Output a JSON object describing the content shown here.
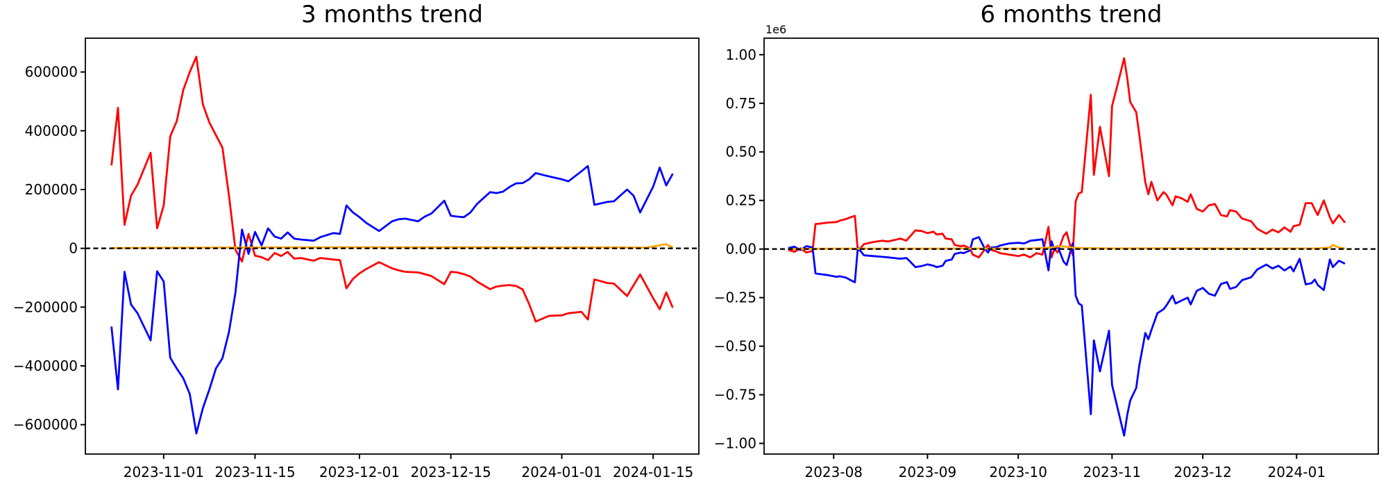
{
  "figure": {
    "background": "#ffffff",
    "axis_color": "#000000",
    "text_color": "#000000"
  },
  "chart_data": [
    {
      "type": "line",
      "title": "3 months trend",
      "legend": "none",
      "grid": false,
      "xlim": [
        "2023-10-20",
        "2024-01-22"
      ],
      "ylim": [
        -700000,
        715000
      ],
      "x_tick_values": [
        "2023-11-01",
        "2023-11-15",
        "2023-12-01",
        "2023-12-15",
        "2024-01-01",
        "2024-01-15"
      ],
      "x_tick_labels": [
        "2023-11-01",
        "2023-11-15",
        "2023-12-01",
        "2023-12-15",
        "2024-01-01",
        "2024-01-15"
      ],
      "y_tick_values": [
        600000,
        400000,
        200000,
        0,
        -200000,
        -400000,
        -600000
      ],
      "y_tick_labels": [
        "600000",
        "400000",
        "200000",
        "0",
        "−200000",
        "−400000",
        "−600000"
      ],
      "zero_line": {
        "value": 0,
        "color": "#000000",
        "style": "dashed"
      },
      "x": [
        "2023-10-24",
        "2023-10-25",
        "2023-10-26",
        "2023-10-27",
        "2023-10-28",
        "2023-10-30",
        "2023-10-31",
        "2023-11-01",
        "2023-11-02",
        "2023-11-03",
        "2023-11-04",
        "2023-11-05",
        "2023-11-06",
        "2023-11-07",
        "2023-11-08",
        "2023-11-09",
        "2023-11-10",
        "2023-11-11",
        "2023-11-12",
        "2023-11-13",
        "2023-11-14",
        "2023-11-15",
        "2023-11-16",
        "2023-11-17",
        "2023-11-18",
        "2023-11-19",
        "2023-11-20",
        "2023-11-21",
        "2023-11-22",
        "2023-11-24",
        "2023-11-25",
        "2023-11-27",
        "2023-11-28",
        "2023-11-29",
        "2023-11-30",
        "2023-12-01",
        "2023-12-02",
        "2023-12-04",
        "2023-12-06",
        "2023-12-07",
        "2023-12-08",
        "2023-12-10",
        "2023-12-11",
        "2023-12-12",
        "2023-12-14",
        "2023-12-15",
        "2023-12-16",
        "2023-12-17",
        "2023-12-18",
        "2023-12-19",
        "2023-12-21",
        "2023-12-22",
        "2023-12-23",
        "2023-12-24",
        "2023-12-25",
        "2023-12-26",
        "2023-12-27",
        "2023-12-28",
        "2023-12-30",
        "2024-01-01",
        "2024-01-02",
        "2024-01-04",
        "2024-01-05",
        "2024-01-06",
        "2024-01-08",
        "2024-01-09",
        "2024-01-11",
        "2024-01-12",
        "2024-01-13",
        "2024-01-15",
        "2024-01-16",
        "2024-01-17",
        "2024-01-18"
      ],
      "series": [
        {
          "name": "red-line",
          "color": "#ff0000",
          "y": [
            282000,
            478000,
            80000,
            179000,
            217000,
            325000,
            68000,
            146000,
            381000,
            433000,
            539000,
            600000,
            652000,
            490000,
            428000,
            385000,
            343000,
            180000,
            -5000,
            -45000,
            49000,
            -25000,
            -30000,
            -40000,
            -16000,
            -26000,
            -12000,
            -35000,
            -33000,
            -42000,
            -33000,
            -38000,
            -40000,
            -136000,
            -104000,
            -85000,
            -71000,
            -47000,
            -68000,
            -75000,
            -80000,
            -82000,
            -88000,
            -94000,
            -122000,
            -80000,
            -82000,
            -88000,
            -96000,
            -113000,
            -139000,
            -130000,
            -127000,
            -125000,
            -128000,
            -140000,
            -190000,
            -249000,
            -230000,
            -228000,
            -221000,
            -216000,
            -242000,
            -106000,
            -118000,
            -120000,
            -162000,
            -125000,
            -89000,
            -170000,
            -207000,
            -150000,
            -202000
          ]
        },
        {
          "name": "blue-line",
          "color": "#0000ff",
          "y": [
            -266000,
            -480000,
            -80000,
            -191000,
            -221000,
            -313000,
            -78000,
            -113000,
            -372000,
            -409000,
            -442000,
            -496000,
            -630000,
            -544000,
            -480000,
            -409000,
            -374000,
            -285000,
            -150000,
            64000,
            -19000,
            56000,
            10000,
            68000,
            40000,
            33000,
            54000,
            33000,
            30000,
            26000,
            38000,
            52000,
            49000,
            146000,
            122000,
            106000,
            87000,
            59000,
            92000,
            99000,
            101000,
            92000,
            108000,
            118000,
            162000,
            111000,
            108000,
            106000,
            122000,
            151000,
            191000,
            188000,
            193000,
            209000,
            221000,
            222000,
            235000,
            256000,
            245000,
            235000,
            228000,
            262000,
            280000,
            148000,
            158000,
            160000,
            200000,
            179000,
            122000,
            210000,
            275000,
            214000,
            254000
          ]
        },
        {
          "name": "orange-line",
          "color": "#ffa500",
          "x": [
            "2023-10-24",
            "2023-11-01",
            "2023-11-15",
            "2023-12-01",
            "2023-12-15",
            "2024-01-05",
            "2024-01-10",
            "2024-01-14",
            "2024-01-16",
            "2024-01-17",
            "2024-01-18"
          ],
          "y": [
            1000,
            2000,
            3000,
            3500,
            3500,
            3000,
            3000,
            2500,
            10000,
            14000,
            3000
          ]
        }
      ]
    },
    {
      "type": "line",
      "title": "6 months trend",
      "legend": "none",
      "grid": false,
      "offset_label": "1e6",
      "xlim": [
        "2023-07-09",
        "2024-01-28"
      ],
      "ylim": [
        -1055000,
        1085000
      ],
      "x_tick_values": [
        "2023-08-01",
        "2023-09-01",
        "2023-10-01",
        "2023-11-01",
        "2023-12-01",
        "2024-01-01"
      ],
      "x_tick_labels": [
        "2023-08",
        "2023-09",
        "2023-10",
        "2023-11",
        "2023-12",
        "2024-01"
      ],
      "y_tick_values": [
        1000000,
        750000,
        500000,
        250000,
        0,
        -250000,
        -500000,
        -750000,
        -1000000
      ],
      "y_tick_labels": [
        "1.00",
        "0.75",
        "0.50",
        "0.25",
        "0.00",
        "−0.25",
        "−0.50",
        "−0.75",
        "−1.00"
      ],
      "zero_line": {
        "value": 0,
        "color": "#000000",
        "style": "dashed"
      },
      "x": [
        "2023-07-17",
        "2023-07-19",
        "2023-07-21",
        "2023-07-23",
        "2023-07-25",
        "2023-07-26",
        "2023-07-28",
        "2023-07-30",
        "2023-08-02",
        "2023-08-03",
        "2023-08-05",
        "2023-08-08",
        "2023-08-09",
        "2023-08-11",
        "2023-08-14",
        "2023-08-17",
        "2023-08-19",
        "2023-08-21",
        "2023-08-23",
        "2023-08-25",
        "2023-08-26",
        "2023-08-28",
        "2023-08-30",
        "2023-09-01",
        "2023-09-03",
        "2023-09-04",
        "2023-09-06",
        "2023-09-07",
        "2023-09-09",
        "2023-09-10",
        "2023-09-12",
        "2023-09-13",
        "2023-09-15",
        "2023-09-16",
        "2023-09-18",
        "2023-09-20",
        "2023-09-21",
        "2023-09-22",
        "2023-09-24",
        "2023-09-25",
        "2023-09-28",
        "2023-10-01",
        "2023-10-03",
        "2023-10-05",
        "2023-10-07",
        "2023-10-09",
        "2023-10-11",
        "2023-10-12",
        "2023-10-13",
        "2023-10-14",
        "2023-10-16",
        "2023-10-17",
        "2023-10-19",
        "2023-10-20",
        "2023-10-21",
        "2023-10-22",
        "2023-10-25",
        "2023-10-26",
        "2023-10-28",
        "2023-10-31",
        "2023-11-01",
        "2023-11-03",
        "2023-11-05",
        "2023-11-06",
        "2023-11-07",
        "2023-11-09",
        "2023-11-10",
        "2023-11-12",
        "2023-11-13",
        "2023-11-14",
        "2023-11-16",
        "2023-11-18",
        "2023-11-19",
        "2023-11-21",
        "2023-11-22",
        "2023-11-24",
        "2023-11-26",
        "2023-11-27",
        "2023-11-29",
        "2023-12-01",
        "2023-12-03",
        "2023-12-05",
        "2023-12-07",
        "2023-12-09",
        "2023-12-10",
        "2023-12-12",
        "2023-12-14",
        "2023-12-17",
        "2023-12-19",
        "2023-12-22",
        "2023-12-24",
        "2023-12-26",
        "2023-12-28",
        "2023-12-30",
        "2023-12-31",
        "2024-01-02",
        "2024-01-04",
        "2024-01-06",
        "2024-01-07",
        "2024-01-08",
        "2024-01-10",
        "2024-01-12",
        "2024-01-13",
        "2024-01-15",
        "2024-01-17"
      ],
      "series": [
        {
          "name": "red-line",
          "color": "#ff0000",
          "y": [
            -5000,
            -14000,
            4000,
            -18000,
            -10000,
            129000,
            132000,
            136000,
            139000,
            146000,
            154000,
            171000,
            -10000,
            25000,
            36000,
            43000,
            39000,
            46000,
            54000,
            43000,
            61000,
            96000,
            93000,
            82000,
            89000,
            75000,
            79000,
            54000,
            50000,
            21000,
            14000,
            18000,
            4000,
            -29000,
            -43000,
            0,
            21000,
            -4000,
            -14000,
            -21000,
            -29000,
            -36000,
            -29000,
            -43000,
            -21000,
            -29000,
            114000,
            -43000,
            0,
            -18000,
            68000,
            86000,
            -32000,
            246000,
            286000,
            293000,
            793000,
            382000,
            629000,
            375000,
            736000,
            857000,
            982000,
            882000,
            757000,
            704000,
            589000,
            343000,
            282000,
            346000,
            250000,
            293000,
            279000,
            225000,
            271000,
            261000,
            243000,
            282000,
            207000,
            193000,
            225000,
            232000,
            175000,
            168000,
            200000,
            193000,
            157000,
            143000,
            104000,
            79000,
            100000,
            86000,
            111000,
            89000,
            118000,
            125000,
            236000,
            236000,
            204000,
            175000,
            250000,
            164000,
            132000,
            175000,
            136000
          ]
        },
        {
          "name": "blue-line",
          "color": "#0000ff",
          "y": [
            5000,
            12000,
            -5000,
            15000,
            8000,
            -125000,
            -130000,
            -134000,
            -143000,
            -140000,
            -147000,
            -171000,
            8000,
            -32000,
            -36000,
            -40000,
            -43000,
            -46000,
            -50000,
            -46000,
            -60000,
            -93000,
            -88000,
            -79000,
            -86000,
            -93000,
            -86000,
            -61000,
            -54000,
            -25000,
            -18000,
            -21000,
            -7000,
            50000,
            61000,
            0,
            -18000,
            7000,
            11000,
            18000,
            29000,
            32000,
            29000,
            43000,
            46000,
            50000,
            -110000,
            40000,
            -5000,
            15000,
            -65000,
            -82000,
            30000,
            -240000,
            -280000,
            -290000,
            -850000,
            -470000,
            -630000,
            -420000,
            -700000,
            -830000,
            -960000,
            -855000,
            -780000,
            -715000,
            -600000,
            -432000,
            -464000,
            -418000,
            -330000,
            -310000,
            -290000,
            -240000,
            -280000,
            -265000,
            -250000,
            -285000,
            -215000,
            -200000,
            -230000,
            -240000,
            -180000,
            -170000,
            -205000,
            -195000,
            -160000,
            -145000,
            -105000,
            -80000,
            -100000,
            -86000,
            -110000,
            -90000,
            -115000,
            -50000,
            -182000,
            -175000,
            -157000,
            -185000,
            -211000,
            -54000,
            -93000,
            -60000,
            -75000
          ]
        },
        {
          "name": "orange-line",
          "color": "#ffa500",
          "x": [
            "2023-07-17",
            "2023-08-01",
            "2023-09-01",
            "2023-10-05",
            "2023-10-12",
            "2023-10-13",
            "2023-10-15",
            "2023-10-17",
            "2023-10-19",
            "2023-10-22",
            "2023-11-01",
            "2023-11-20",
            "2023-12-10",
            "2024-01-08",
            "2024-01-12",
            "2024-01-13",
            "2024-01-15",
            "2024-01-17"
          ],
          "y": [
            0,
            2000,
            2000,
            3000,
            8000,
            12000,
            14000,
            12000,
            7000,
            5000,
            3000,
            4000,
            3000,
            3000,
            8000,
            21000,
            8000,
            3000
          ]
        }
      ]
    }
  ]
}
